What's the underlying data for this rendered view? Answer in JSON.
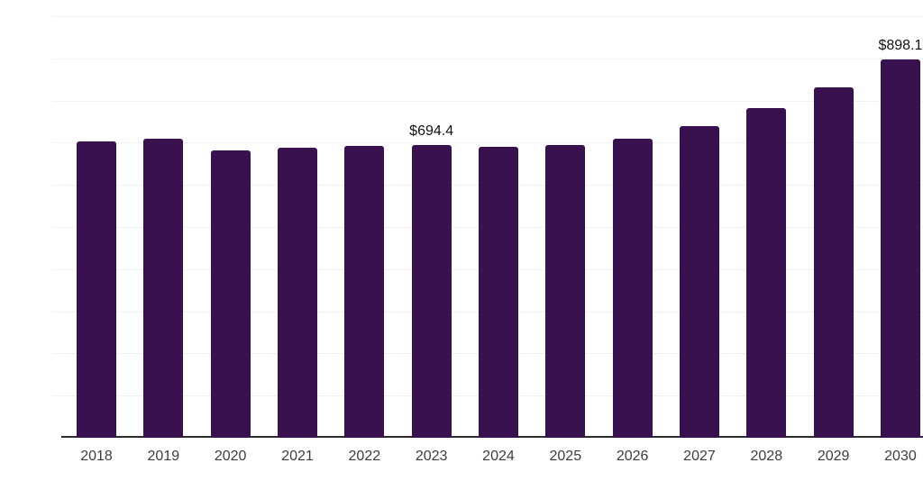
{
  "chart_data": {
    "type": "bar",
    "title": "",
    "xlabel": "",
    "ylabel": "",
    "categories": [
      "2018",
      "2019",
      "2020",
      "2021",
      "2022",
      "2023",
      "2024",
      "2025",
      "2026",
      "2027",
      "2028",
      "2029",
      "2030"
    ],
    "values": [
      702.5,
      709.5,
      682.5,
      687.0,
      693.0,
      694.4,
      691.0,
      693.5,
      709.0,
      740.0,
      782.0,
      831.5,
      898.1
    ],
    "annotations": [
      {
        "category": "2023",
        "text": "$694.4"
      },
      {
        "category": "2030",
        "text": "$898.1"
      }
    ],
    "ylim": [
      0,
      1000
    ],
    "gridline_step": 100,
    "grid": "horizontal",
    "legend": "none",
    "y_tick_labels_visible": false,
    "bar_color": "#3a114f",
    "axis_line_color": "#2e2e2e",
    "gridline_color": "#f1f1f1",
    "tick_label_color": "#3d3d3d",
    "value_label_color": "#111111",
    "background_color": "#ffffff"
  }
}
